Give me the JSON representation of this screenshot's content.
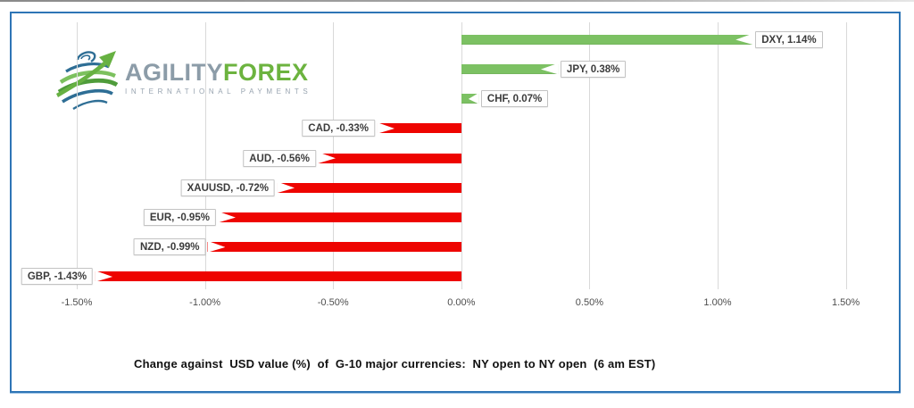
{
  "logo": {
    "brand_primary": "AGILITY",
    "brand_secondary": "FOREX",
    "tagline": "INTERNATIONAL PAYMENTS"
  },
  "chart_data": {
    "type": "bar",
    "orientation": "horizontal",
    "title": "Change against  USD value (%)  of  G-10 major currencies:  NY open to NY open  (6 am EST)",
    "categories": [
      "DXY",
      "JPY",
      "CHF",
      "CAD",
      "AUD",
      "XAUUSD",
      "EUR",
      "NZD",
      "GBP"
    ],
    "values": [
      1.14,
      0.38,
      0.07,
      -0.33,
      -0.56,
      -0.72,
      -0.95,
      -0.99,
      -1.43
    ],
    "data_labels": [
      "DXY, 1.14%",
      "JPY, 0.38%",
      "CHF, 0.07%",
      "CAD, -0.33%",
      "AUD, -0.56%",
      "XAUUSD, -0.72%",
      "EUR, -0.95%",
      "NZD, -0.99%",
      "GBP, -1.43%"
    ],
    "x_ticks": [
      "-1.50%",
      "-1.00%",
      "-0.50%",
      "0.00%",
      "0.50%",
      "1.00%",
      "1.50%"
    ],
    "xlim": [
      -1.5,
      1.5
    ],
    "grid": "vertical-only",
    "legend": "none",
    "colors": {
      "positive": "#7CC163",
      "negative": "#EE0400",
      "gridline": "#D9D9D9",
      "frame_border": "#2E75B6"
    }
  }
}
